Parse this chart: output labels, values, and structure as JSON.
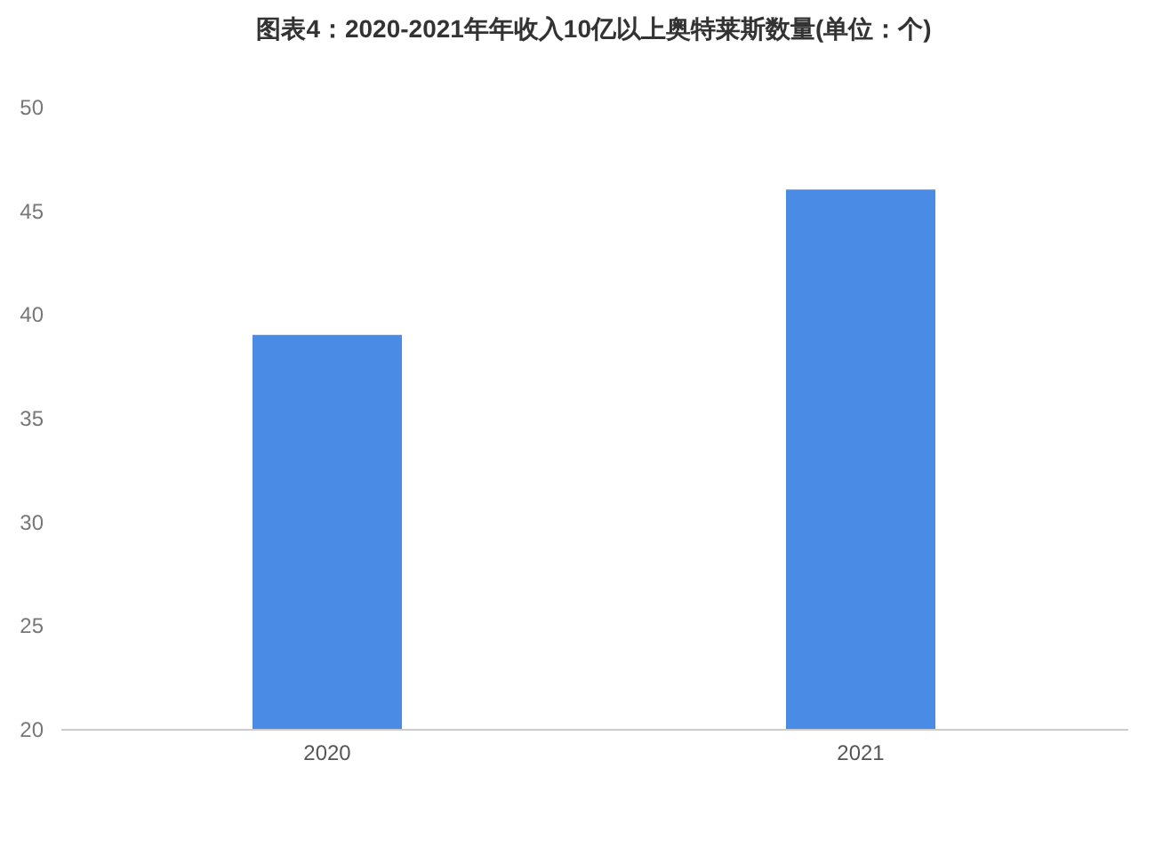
{
  "chart_data": {
    "type": "bar",
    "title": "图表4：2020-2021年年收入10亿以上奥特莱斯数量(单位：个)",
    "categories": [
      "2020",
      "2021"
    ],
    "values": [
      39,
      46
    ],
    "color": "#4a8be6",
    "ylim": [
      20,
      50
    ],
    "yticks": [
      20,
      25,
      30,
      35,
      40,
      45,
      50
    ],
    "grid": false
  }
}
